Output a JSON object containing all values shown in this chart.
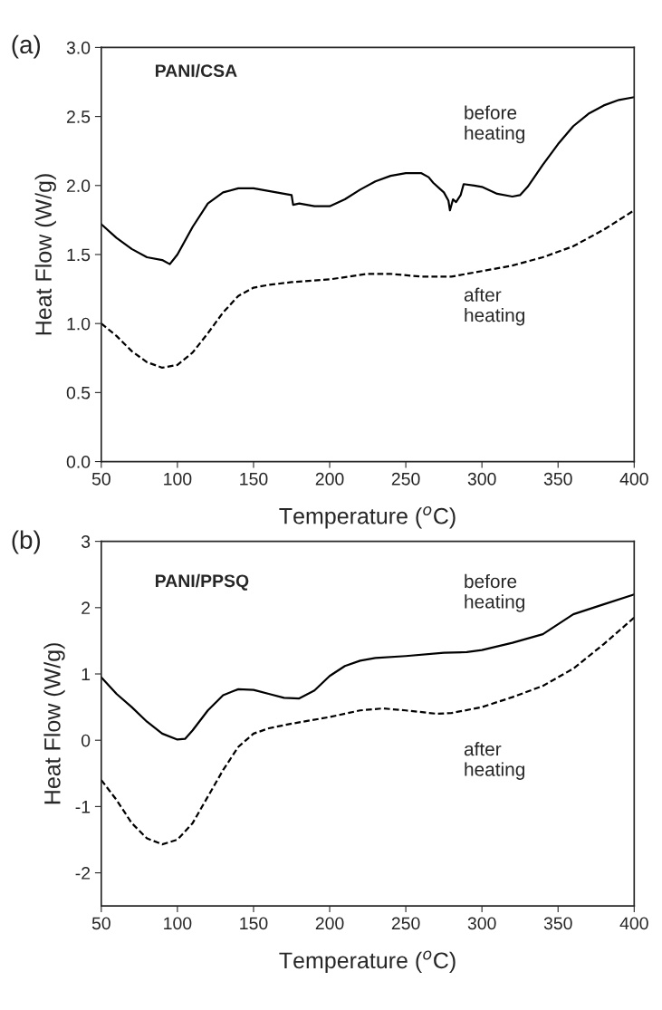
{
  "chart_data": [
    {
      "type": "line",
      "xlabel": "Temperature ($^{o}$C)",
      "ylabel": "Heat Flow (W/g)",
      "xlim": [
        50,
        400
      ],
      "xticks": [
        50,
        100,
        150,
        200,
        250,
        300,
        350,
        400
      ],
      "ylim": [
        0,
        3
      ],
      "yticks": [
        {
          "value": 0,
          "label": "0.0"
        },
        0.5,
        {
          "value": 1,
          "label": "1.0"
        },
        1.5,
        {
          "value": 2,
          "label": "2.0"
        },
        2.5,
        {
          "value": 3,
          "label": "3.0"
        }
      ],
      "grid": false,
      "legend": false,
      "annotations": [
        "(a)",
        "PANI/CSA",
        "before\nheating",
        "after\nheating"
      ],
      "series": [
        {
          "color": "#000000",
          "line_style": "solid",
          "x": [
            50,
            60,
            70,
            80,
            90,
            95,
            100,
            110,
            120,
            130,
            140,
            150,
            160,
            170,
            175,
            176,
            180,
            190,
            200,
            210,
            220,
            230,
            240,
            250,
            260,
            265,
            268,
            272,
            275,
            278,
            279,
            281,
            283,
            286,
            288,
            295,
            300,
            310,
            320,
            325,
            330,
            340,
            350,
            360,
            370,
            380,
            390,
            400
          ],
          "values": [
            1.72,
            1.62,
            1.54,
            1.48,
            1.46,
            1.43,
            1.5,
            1.7,
            1.87,
            1.95,
            1.98,
            1.98,
            1.96,
            1.94,
            1.93,
            1.86,
            1.87,
            1.85,
            1.85,
            1.9,
            1.97,
            2.03,
            2.07,
            2.09,
            2.09,
            2.06,
            2.02,
            1.98,
            1.95,
            1.89,
            1.82,
            1.9,
            1.88,
            1.93,
            2.01,
            2.0,
            1.99,
            1.94,
            1.92,
            1.93,
            1.99,
            2.15,
            2.3,
            2.43,
            2.52,
            2.58,
            2.62,
            2.64
          ]
        },
        {
          "color": "#000000",
          "line_style": "dashed",
          "x": [
            50,
            60,
            70,
            80,
            90,
            100,
            110,
            120,
            130,
            140,
            150,
            160,
            175,
            200,
            225,
            240,
            260,
            280,
            300,
            320,
            340,
            360,
            380,
            400
          ],
          "values": [
            1.0,
            0.91,
            0.8,
            0.72,
            0.68,
            0.7,
            0.79,
            0.93,
            1.08,
            1.2,
            1.26,
            1.28,
            1.3,
            1.32,
            1.36,
            1.36,
            1.34,
            1.34,
            1.38,
            1.42,
            1.48,
            1.56,
            1.68,
            1.82
          ]
        }
      ]
    },
    {
      "type": "line",
      "xlabel": "Temperature ($^{o}$C)",
      "ylabel": "Heat Flow (W/g)",
      "xlim": [
        50,
        400
      ],
      "xticks": [
        50,
        100,
        150,
        200,
        250,
        300,
        350,
        400
      ],
      "ylim": [
        -2.5,
        3
      ],
      "yticks": [
        {
          "value": -2,
          "label": "-2"
        },
        {
          "value": -1,
          "label": "-1"
        },
        0,
        1,
        2,
        3
      ],
      "grid": false,
      "legend": false,
      "annotations": [
        "(b)",
        "PANI/PPSQ",
        "before\nheating",
        "after\nheating"
      ],
      "series": [
        {
          "color": "#000000",
          "line_style": "solid",
          "x": [
            50,
            60,
            70,
            80,
            90,
            100,
            105,
            110,
            120,
            130,
            140,
            150,
            160,
            170,
            180,
            190,
            200,
            210,
            220,
            230,
            250,
            275,
            290,
            300,
            320,
            340,
            350,
            360,
            380,
            400
          ],
          "values": [
            0.95,
            0.7,
            0.5,
            0.28,
            0.1,
            0.01,
            0.02,
            0.15,
            0.45,
            0.68,
            0.77,
            0.76,
            0.7,
            0.64,
            0.63,
            0.75,
            0.97,
            1.12,
            1.2,
            1.24,
            1.27,
            1.32,
            1.33,
            1.36,
            1.47,
            1.6,
            1.75,
            1.9,
            2.05,
            2.2
          ]
        },
        {
          "color": "#000000",
          "line_style": "dashed",
          "x": [
            50,
            60,
            70,
            80,
            90,
            100,
            110,
            120,
            130,
            140,
            150,
            160,
            175,
            200,
            220,
            235,
            250,
            270,
            280,
            300,
            320,
            340,
            360,
            380,
            400
          ],
          "values": [
            -0.6,
            -0.9,
            -1.25,
            -1.48,
            -1.57,
            -1.5,
            -1.25,
            -0.85,
            -0.45,
            -0.1,
            0.1,
            0.18,
            0.25,
            0.35,
            0.45,
            0.48,
            0.45,
            0.4,
            0.41,
            0.5,
            0.65,
            0.82,
            1.08,
            1.45,
            1.85
          ]
        }
      ]
    }
  ]
}
